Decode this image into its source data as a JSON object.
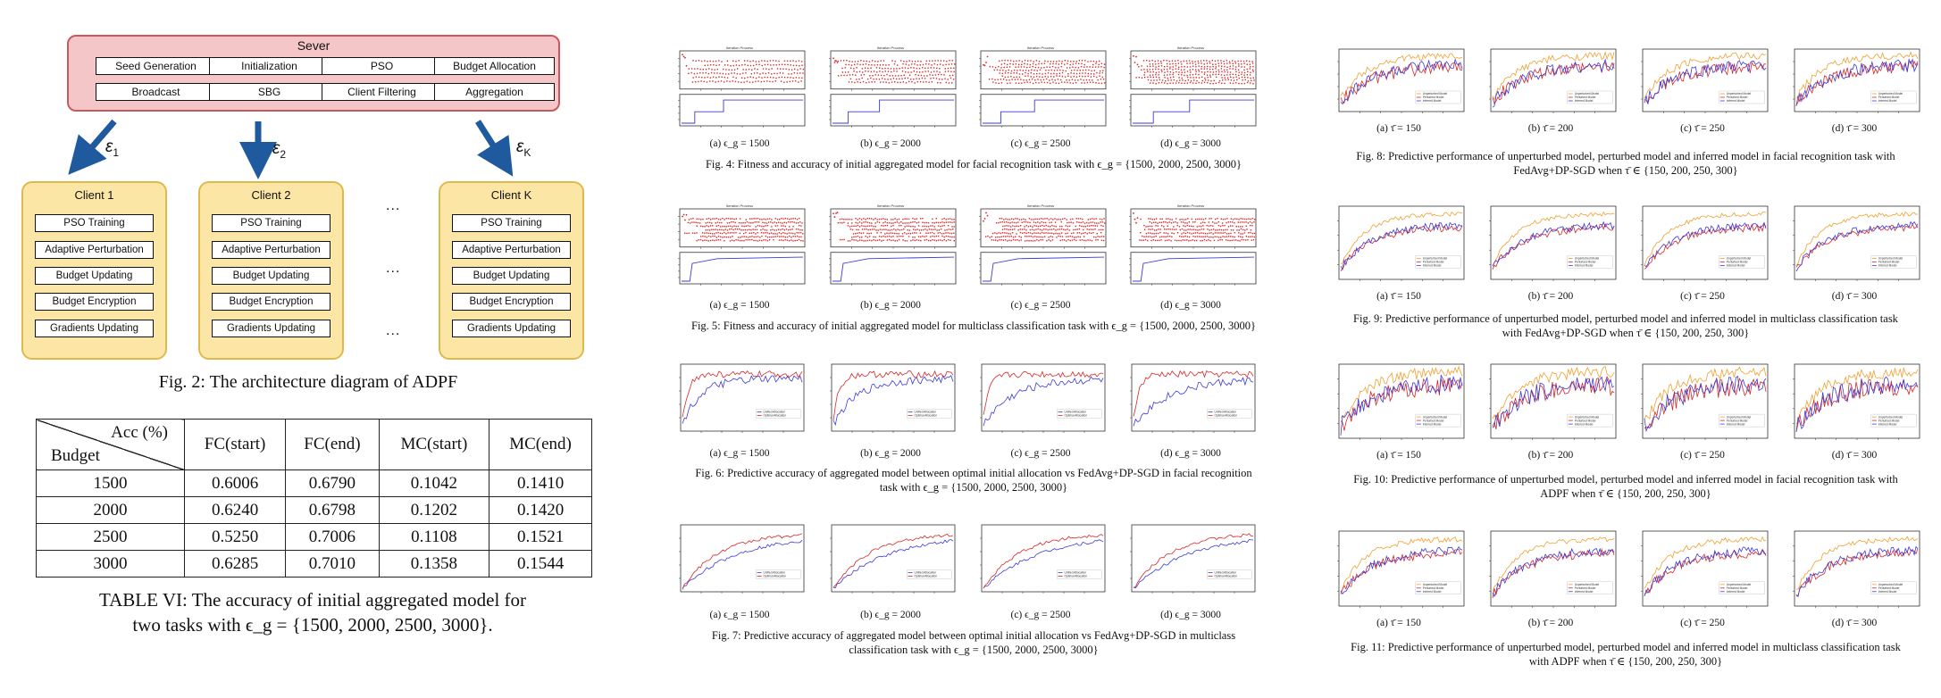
{
  "architecture": {
    "server": {
      "title": "Sever",
      "modules": [
        "Seed Generation",
        "Initialization",
        "PSO",
        "Budget Allocation",
        "Broadcast",
        "SBG",
        "Client Filtering",
        "Aggregation"
      ]
    },
    "epsilons": [
      {
        "sym": "ε",
        "sub": "1"
      },
      {
        "sym": "ε",
        "sub": "2"
      },
      {
        "sym": "ε",
        "sub": "K"
      }
    ],
    "clients": [
      {
        "title": "Client 1"
      },
      {
        "title": "Client 2"
      },
      {
        "title": "Client K"
      }
    ],
    "client_modules": [
      "PSO Training",
      "Adaptive Perturbation",
      "Budget Updating",
      "Budget Encryption",
      "Gradients Updating"
    ],
    "ellipsis": "...",
    "caption": "Fig. 2: The architecture diagram of ADPF"
  },
  "table": {
    "corner_top": "Acc (%)",
    "corner_bottom": "Budget",
    "columns": [
      "FC(start)",
      "FC(end)",
      "MC(start)",
      "MC(end)"
    ],
    "rows": [
      {
        "budget": "1500",
        "cells": [
          "0.6006",
          "0.6790",
          "0.1042",
          "0.1410"
        ]
      },
      {
        "budget": "2000",
        "cells": [
          "0.6240",
          "0.6798",
          "0.1202",
          "0.1420"
        ]
      },
      {
        "budget": "2500",
        "cells": [
          "0.5250",
          "0.7006",
          "0.1108",
          "0.1521"
        ]
      },
      {
        "budget": "3000",
        "cells": [
          "0.6285",
          "0.7010",
          "0.1358",
          "0.1544"
        ]
      }
    ],
    "caption_line1": "TABLE VI: The accuracy of initial aggregated model for",
    "caption_line2": "two tasks with ϵ_g = {1500, 2000, 2500, 3000}."
  },
  "colors": {
    "server_fill": "#f5c6c8",
    "server_border": "#c85a5f",
    "client_fill": "#fbe6a6",
    "client_border": "#e0b94d",
    "arrow": "#1f5a9e",
    "red": "#d62728",
    "blue": "#3b3bd6",
    "orange": "#f0a030"
  },
  "middle_figures": {
    "fig4": {
      "subcaptions": [
        "(a) ϵ_g = 1500",
        "(b) ϵ_g = 2000",
        "(c) ϵ_g = 2500",
        "(d) ϵ_g = 3000"
      ],
      "caption": "Fig. 4: Fitness and accuracy of initial aggregated model for facial recognition task with ϵ_g = {1500, 2000, 2500, 3000}",
      "plot_title": "Iteration Process"
    },
    "fig5": {
      "subcaptions": [
        "(a) ϵ_g = 1500",
        "(b) ϵ_g = 2000",
        "(c) ϵ_g = 2500",
        "(d) ϵ_g = 3000"
      ],
      "caption": "Fig. 5: Fitness and accuracy of initial aggregated model for multiclass classification task with ϵ_g = {1500, 2000, 2500, 3000}",
      "plot_title": "Iteration Process"
    },
    "fig6": {
      "subcaptions": [
        "(a) ϵ_g = 1500",
        "(b) ϵ_g = 2000",
        "(c) ϵ_g = 2500",
        "(d) ϵ_g = 3000"
      ],
      "caption_line1": "Fig. 6: Predictive accuracy of aggregated model between optimal initial allocation vs FedAvg+DP-SGD in facial recognition",
      "caption_line2": "task with ϵ_g = {1500, 2000, 2500, 3000}",
      "legend": [
        "Unified Allocation",
        "Optimal Allocation"
      ]
    },
    "fig7": {
      "subcaptions": [
        "(a) ϵ_g = 1500",
        "(b) ϵ_g = 2000",
        "(c) ϵ_g = 2500",
        "(d) ϵ_g = 3000"
      ],
      "caption_line1": "Fig. 7: Predictive accuracy of aggregated model between optimal initial allocation vs FedAvg+DP-SGD in multiclass",
      "caption_line2": "classification task with ϵ_g = {1500, 2000, 2500, 3000}",
      "legend": [
        "Unified Allocation",
        "Optimal Allocation"
      ]
    }
  },
  "right_figures": {
    "legend": [
      "Unperturbed Model",
      "Perturbed Model",
      "Inferred Model"
    ],
    "fig8": {
      "subcaptions": [
        "(a) τ̄ = 150",
        "(b) τ̄ = 200",
        "(c) τ̄ = 250",
        "(d) τ̄ = 300"
      ],
      "caption_line1": "Fig. 8: Predictive performance of unperturbed model, perturbed model and inferred model in facial recognition task with",
      "caption_line2": "FedAvg+DP-SGD when τ̄ ∈ {150, 200, 250, 300}"
    },
    "fig9": {
      "subcaptions": [
        "(a) τ̄ = 150",
        "(b) τ̄ = 200",
        "(c) τ̄ = 250",
        "(d) τ̄ = 300"
      ],
      "caption_line1": "Fig. 9: Predictive performance of unperturbed model, perturbed model and inferred model in multiclass classification task",
      "caption_line2": "with FedAvg+DP-SGD when τ̄ ∈ {150, 200, 250, 300}"
    },
    "fig10": {
      "subcaptions": [
        "(a) τ̄ = 150",
        "(b) τ̄ = 200",
        "(c) τ̄ = 250",
        "(d) τ̄ = 300"
      ],
      "caption_line1": "Fig. 10: Predictive performance of unperturbed model, perturbed model and inferred model in facial recognition task with",
      "caption_line2": "ADPF when τ̄ ∈ {150, 200, 250, 300}"
    },
    "fig11": {
      "subcaptions": [
        "(a) τ̄ = 150",
        "(b) τ̄ = 200",
        "(c) τ̄ = 250",
        "(d) τ̄ = 300"
      ],
      "caption_line1": "Fig. 11: Predictive performance of unperturbed model, perturbed model and inferred model in multiclass classification task",
      "caption_line2": "with ADPF when τ̄ ∈ {150, 200, 250, 300}"
    }
  }
}
